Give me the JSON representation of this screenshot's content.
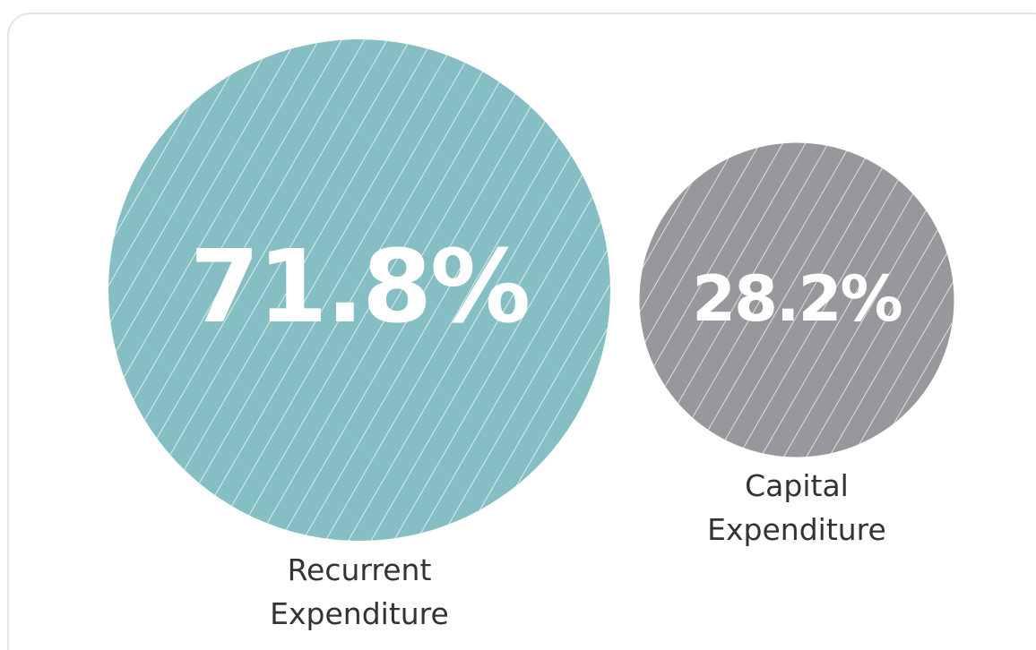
{
  "chart_data": {
    "type": "bubble",
    "categories": [
      "Recurrent Expenditure",
      "Capital Expenditure"
    ],
    "values": [
      71.8,
      28.2
    ],
    "value_labels": [
      "71.8%",
      "28.2%"
    ],
    "colors": [
      "#86bfc3",
      "#98989c"
    ]
  }
}
